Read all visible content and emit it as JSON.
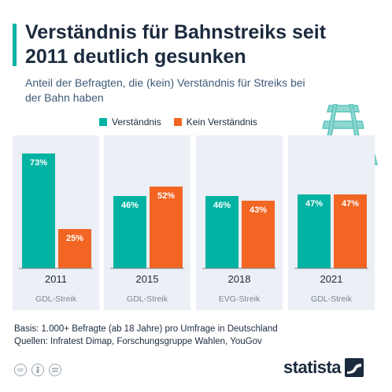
{
  "title": "Verständnis für Bahnstreiks seit 2011 deutlich gesunken",
  "subtitle": "Anteil der Befragten, die (kein) Verständnis für Streiks bei der Bahn haben",
  "chart_data": {
    "type": "bar",
    "categories": [
      "2011",
      "2015",
      "2018",
      "2021"
    ],
    "sublabels": [
      "GDL-Streik",
      "GDL-Streik",
      "EVG-Streik",
      "GDL-Streik"
    ],
    "series": [
      {
        "name": "Verständnis",
        "color": "#00b3a3",
        "values": [
          73,
          46,
          46,
          47
        ],
        "labels": [
          "73%",
          "46%",
          "46%",
          "47%"
        ]
      },
      {
        "name": "Kein Verständnis",
        "color": "#f26522",
        "values": [
          25,
          52,
          43,
          47
        ],
        "labels": [
          "25%",
          "52%",
          "43%",
          "47%"
        ]
      }
    ],
    "ylim": [
      0,
      80
    ],
    "grid": false,
    "legend_position": "top"
  },
  "footer": {
    "basis": "Basis: 1.000+ Befragte (ab 18 Jahre) pro Umfrage in Deutschland",
    "sources": "Quellen: Infratest Dimap, Forschungsgruppe Wahlen, YouGov"
  },
  "icons": [
    "creative-commons-icon",
    "attribution-icon",
    "no-derivatives-icon",
    "railway-tracks-icon"
  ],
  "logo": {
    "text": "statista"
  }
}
